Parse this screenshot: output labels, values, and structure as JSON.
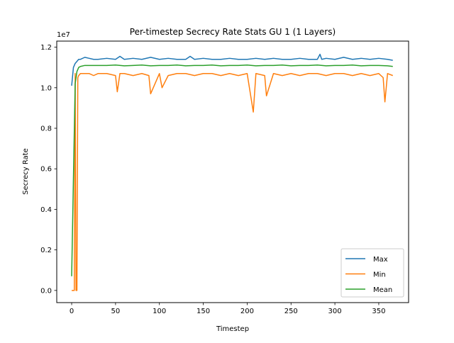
{
  "chart_data": {
    "type": "line",
    "title": "Per-timestep Secrecy Rate Stats GU 1 (1 Layers)",
    "xlabel": "Timestep",
    "ylabel": "Secrecy Rate",
    "y_offset_label": "1e7",
    "xlim": [
      -17,
      384
    ],
    "ylim": [
      -0.06,
      1.23
    ],
    "y_units": "1e7",
    "x_ticks": [
      0,
      50,
      100,
      150,
      200,
      250,
      300,
      350
    ],
    "x_tick_labels": [
      "0",
      "50",
      "100",
      "150",
      "200",
      "250",
      "300",
      "350"
    ],
    "y_ticks": [
      0.0,
      0.2,
      0.4,
      0.6,
      0.8,
      1.0,
      1.2
    ],
    "y_tick_labels": [
      "0.0",
      "0.2",
      "0.4",
      "0.6",
      "0.8",
      "1.0",
      "1.2"
    ],
    "grid": false,
    "legend_placement": "lower-right",
    "series": [
      {
        "name": "Max",
        "color": "#1f77b4",
        "x": [
          0,
          2,
          4,
          6,
          8,
          10,
          15,
          20,
          25,
          30,
          40,
          50,
          55,
          60,
          70,
          80,
          90,
          100,
          110,
          120,
          130,
          135,
          140,
          150,
          160,
          170,
          180,
          190,
          200,
          210,
          220,
          230,
          240,
          250,
          260,
          270,
          280,
          283,
          285,
          290,
          300,
          310,
          320,
          330,
          340,
          350,
          360,
          366
        ],
        "values": [
          1.01,
          1.1,
          1.12,
          1.13,
          1.14,
          1.14,
          1.15,
          1.145,
          1.14,
          1.14,
          1.145,
          1.14,
          1.155,
          1.14,
          1.145,
          1.14,
          1.15,
          1.14,
          1.145,
          1.14,
          1.14,
          1.155,
          1.14,
          1.145,
          1.14,
          1.14,
          1.145,
          1.14,
          1.14,
          1.145,
          1.14,
          1.145,
          1.14,
          1.14,
          1.145,
          1.14,
          1.14,
          1.165,
          1.14,
          1.145,
          1.14,
          1.15,
          1.14,
          1.145,
          1.14,
          1.145,
          1.14,
          1.135
        ]
      },
      {
        "name": "Min",
        "color": "#ff7f0e",
        "x": [
          0,
          2,
          3,
          4,
          5,
          6,
          7,
          8,
          10,
          15,
          20,
          25,
          30,
          40,
          50,
          52,
          55,
          60,
          70,
          80,
          88,
          90,
          100,
          103,
          110,
          120,
          130,
          140,
          150,
          160,
          170,
          180,
          190,
          200,
          207,
          210,
          220,
          222,
          230,
          240,
          250,
          260,
          270,
          280,
          290,
          300,
          310,
          320,
          330,
          340,
          350,
          355,
          357,
          360,
          366
        ],
        "values": [
          0.0,
          0.0,
          0.0,
          1.07,
          0.0,
          0.0,
          1.05,
          1.06,
          1.07,
          1.07,
          1.07,
          1.06,
          1.07,
          1.07,
          1.06,
          0.98,
          1.07,
          1.07,
          1.06,
          1.07,
          1.06,
          0.97,
          1.07,
          1.0,
          1.06,
          1.07,
          1.07,
          1.06,
          1.07,
          1.07,
          1.06,
          1.07,
          1.06,
          1.07,
          0.88,
          1.07,
          1.06,
          0.96,
          1.07,
          1.06,
          1.07,
          1.06,
          1.07,
          1.07,
          1.06,
          1.07,
          1.07,
          1.06,
          1.07,
          1.06,
          1.07,
          1.05,
          0.93,
          1.07,
          1.06
        ]
      },
      {
        "name": "Mean",
        "color": "#2ca02c",
        "x": [
          0,
          2,
          4,
          6,
          8,
          10,
          15,
          20,
          30,
          40,
          50,
          60,
          70,
          80,
          90,
          100,
          110,
          120,
          130,
          140,
          150,
          160,
          170,
          180,
          190,
          200,
          210,
          220,
          230,
          240,
          250,
          260,
          270,
          280,
          290,
          300,
          310,
          320,
          330,
          340,
          350,
          360,
          366
        ],
        "values": [
          0.07,
          0.55,
          1.02,
          1.08,
          1.1,
          1.105,
          1.11,
          1.11,
          1.11,
          1.11,
          1.112,
          1.108,
          1.11,
          1.112,
          1.108,
          1.11,
          1.11,
          1.112,
          1.108,
          1.11,
          1.11,
          1.112,
          1.108,
          1.11,
          1.11,
          1.112,
          1.108,
          1.11,
          1.11,
          1.112,
          1.108,
          1.11,
          1.11,
          1.112,
          1.108,
          1.11,
          1.11,
          1.112,
          1.108,
          1.11,
          1.11,
          1.108,
          1.105
        ]
      }
    ]
  }
}
